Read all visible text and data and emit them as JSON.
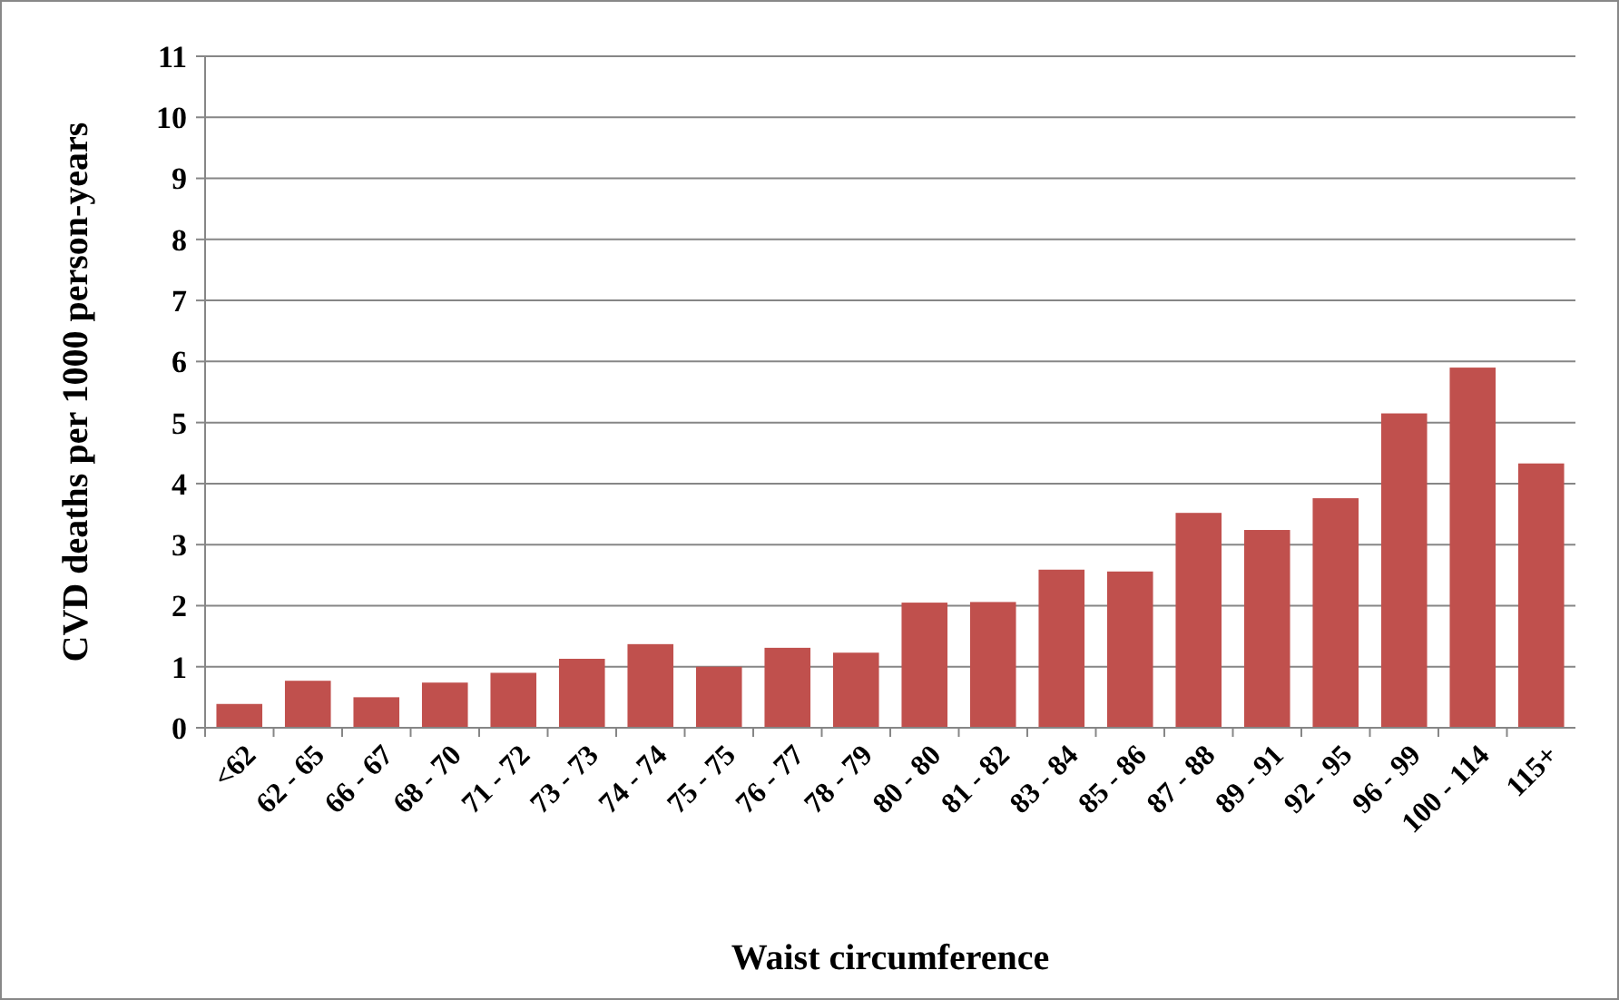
{
  "chart_data": {
    "type": "bar",
    "xlabel": "Waist circumference",
    "ylabel": "CVD deaths per 1000 person-years",
    "categories": [
      "<62",
      "62 - 65",
      "66 - 67",
      "68 - 70",
      "71 - 72",
      "73 - 73",
      "74 - 74",
      "75 - 75",
      "76 - 77",
      "78 - 79",
      "80 - 80",
      "81 - 82",
      "83 - 84",
      "85 - 86",
      "87 - 88",
      "89 - 91",
      "92 - 95",
      "96 - 99",
      "100 - 114",
      "115+"
    ],
    "values": [
      0.39,
      0.77,
      0.5,
      0.74,
      0.9,
      1.13,
      1.37,
      1.0,
      1.31,
      1.23,
      2.05,
      2.06,
      2.59,
      2.56,
      3.52,
      3.24,
      3.76,
      5.15,
      5.9,
      4.33
    ],
    "color": "#c0504d",
    "ylim": [
      0,
      11
    ],
    "yticks": [
      0,
      1,
      2,
      3,
      4,
      5,
      6,
      7,
      8,
      9,
      10,
      11
    ],
    "grid": "y"
  }
}
